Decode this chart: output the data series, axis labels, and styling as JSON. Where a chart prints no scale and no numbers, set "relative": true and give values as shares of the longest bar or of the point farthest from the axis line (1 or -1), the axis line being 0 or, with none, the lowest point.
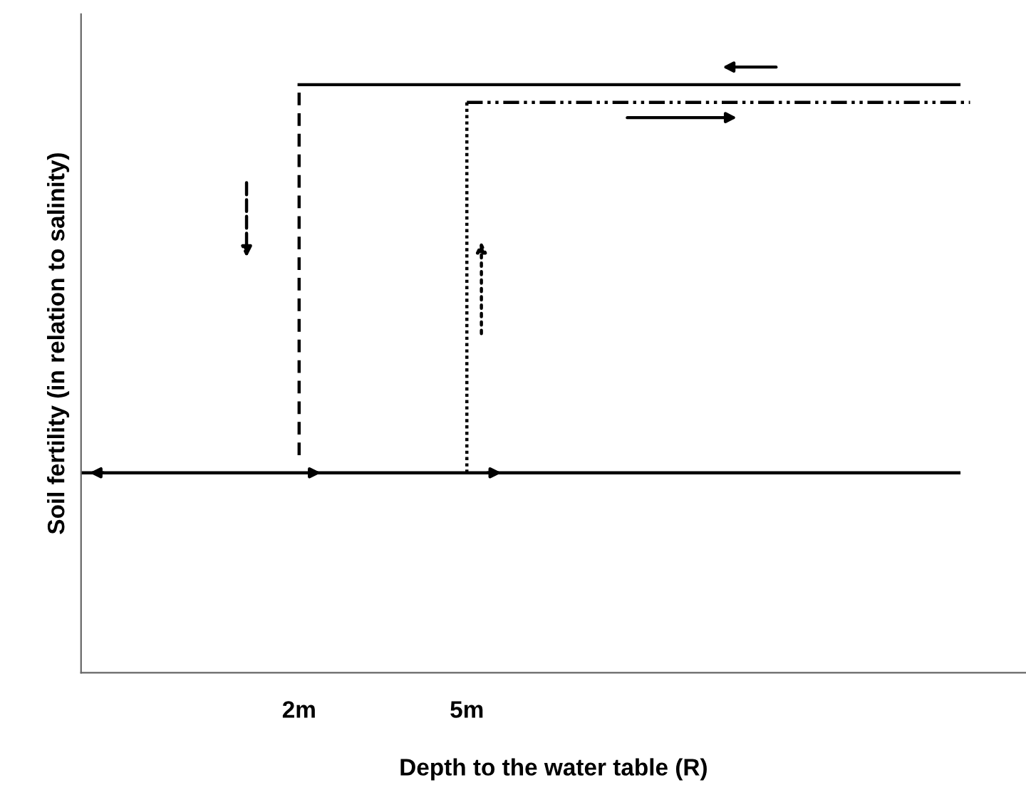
{
  "chart_data": {
    "type": "line",
    "relative": true,
    "xlabel": "Depth to the water table (R)",
    "ylabel": "Soil fertility (in relation to salinity)",
    "xlim": [
      -1.9,
      15
    ],
    "xticks": [
      {
        "value": 2,
        "label": "2m"
      },
      {
        "value": 5,
        "label": "5m"
      }
    ],
    "tick_labels": "x",
    "grid": false,
    "marker": "none",
    "series": [
      {
        "color": "#000000",
        "line_style": "solid",
        "x": [
          -1.9,
          13.8
        ],
        "values": [
          0.34,
          0.34
        ]
      },
      {
        "color": "#000000",
        "line_style": "dashed",
        "x": [
          2,
          2
        ],
        "values": [
          0.37,
          1
        ]
      },
      {
        "color": "#000000",
        "line_style": "solid",
        "x": [
          2,
          13.8
        ],
        "values": [
          1,
          1
        ]
      },
      {
        "color": "#000000",
        "line_style": "dotted",
        "x": [
          5,
          5
        ],
        "values": [
          0.34,
          0.97
        ]
      },
      {
        "color": "#000000",
        "line_style": "dashdot",
        "x": [
          5,
          14
        ],
        "values": [
          0.97,
          0.97
        ]
      }
    ]
  }
}
